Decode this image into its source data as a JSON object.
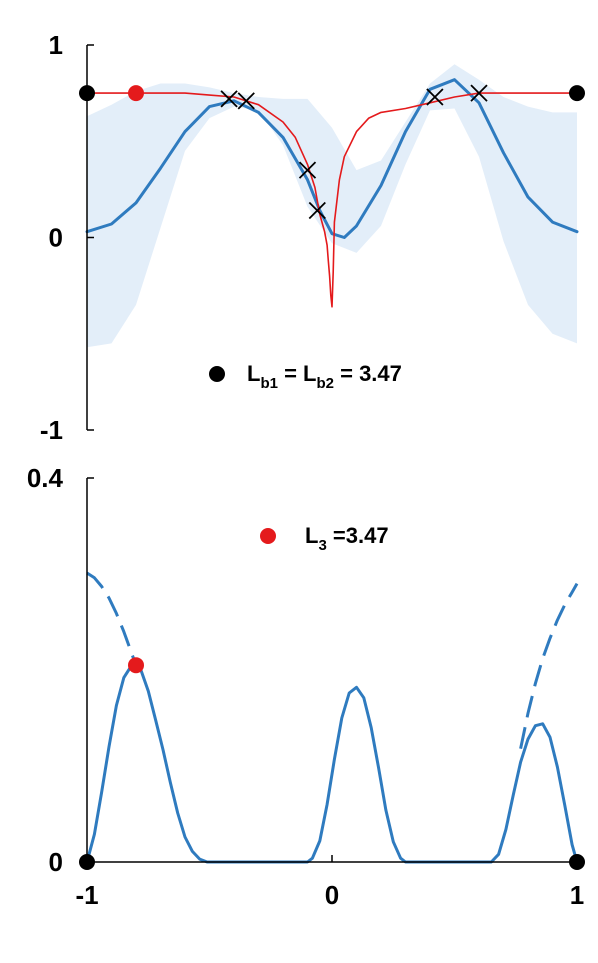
{
  "chart_data": [
    {
      "type": "line",
      "title": "",
      "xlabel": "",
      "ylabel": "",
      "xlim": [
        -1,
        1
      ],
      "ylim": [
        -1,
        1
      ],
      "y_ticks": [
        {
          "value": -1,
          "label": "-1"
        },
        {
          "value": 0,
          "label": "0"
        },
        {
          "value": 1,
          "label": "1"
        }
      ],
      "x_ticks": [],
      "grid": false,
      "colors": {
        "blue": "#2f7bbf",
        "band": "#e3eef9",
        "red": "#e41a1c",
        "black": "#000000"
      },
      "series": [
        {
          "kind": "band",
          "x": [
            -1,
            -0.9,
            -0.8,
            -0.7,
            -0.6,
            -0.5,
            -0.4,
            -0.3,
            -0.2,
            -0.1,
            0,
            0.1,
            0.2,
            0.3,
            0.4,
            0.5,
            0.6,
            0.7,
            0.8,
            0.9,
            1
          ],
          "upper": [
            0.63,
            0.69,
            0.76,
            0.8,
            0.8,
            0.78,
            0.75,
            0.73,
            0.72,
            0.72,
            0.57,
            0.35,
            0.4,
            0.6,
            0.8,
            0.9,
            0.82,
            0.73,
            0.68,
            0.65,
            0.65
          ],
          "lower": [
            -0.57,
            -0.55,
            -0.35,
            0.05,
            0.45,
            0.62,
            0.68,
            0.66,
            0.48,
            0.16,
            -0.03,
            -0.08,
            0.06,
            0.38,
            0.66,
            0.67,
            0.42,
            -0.02,
            -0.35,
            -0.5,
            -0.55
          ]
        },
        {
          "kind": "line",
          "x": [
            -1,
            -0.9,
            -0.8,
            -0.7,
            -0.6,
            -0.5,
            -0.4,
            -0.3,
            -0.2,
            -0.1,
            -0.05,
            0,
            0.05,
            0.1,
            0.2,
            0.3,
            0.4,
            0.5,
            0.6,
            0.7,
            0.8,
            0.9,
            1
          ],
          "y": [
            0.03,
            0.07,
            0.18,
            0.36,
            0.55,
            0.68,
            0.71,
            0.65,
            0.52,
            0.3,
            0.14,
            0.02,
            0.0,
            0.06,
            0.27,
            0.55,
            0.77,
            0.82,
            0.7,
            0.44,
            0.21,
            0.08,
            0.03
          ]
        },
        {
          "kind": "line",
          "x": [
            -1,
            -0.6,
            -0.5,
            -0.4,
            -0.3,
            -0.2,
            -0.15,
            -0.1,
            -0.07,
            -0.05,
            -0.03,
            -0.02,
            -0.015,
            -0.01,
            -0.005,
            0,
            0.005,
            0.01,
            0.03,
            0.05,
            0.1,
            0.15,
            0.2,
            0.3,
            0.4,
            0.5,
            0.6,
            1
          ],
          "y": [
            0.75,
            0.75,
            0.74,
            0.73,
            0.69,
            0.6,
            0.52,
            0.38,
            0.26,
            0.12,
            0.03,
            -0.04,
            -0.12,
            -0.2,
            -0.3,
            -0.36,
            -0.18,
            0.08,
            0.3,
            0.42,
            0.55,
            0.62,
            0.65,
            0.67,
            0.7,
            0.73,
            0.75,
            0.75
          ]
        },
        {
          "kind": "markers",
          "marker": "x",
          "x": [
            -0.42,
            -0.35,
            -0.1,
            -0.06,
            0.42,
            0.6
          ],
          "y": [
            0.72,
            0.71,
            0.35,
            0.14,
            0.73,
            0.75
          ]
        },
        {
          "kind": "markers",
          "marker": "dot-black",
          "x": [
            -1,
            1
          ],
          "y": [
            0.75,
            0.75
          ]
        },
        {
          "kind": "markers",
          "marker": "dot-red",
          "x": [
            -0.8
          ],
          "y": [
            0.75
          ]
        }
      ],
      "legend": {
        "placement": "bottom-center",
        "entries": [
          {
            "marker": "dot-black",
            "parts": [
              {
                "text": "L",
                "sub": false
              },
              {
                "text": "b1",
                "sub": true
              },
              {
                "text": " = L",
                "sub": false
              },
              {
                "text": "b2",
                "sub": true
              },
              {
                "text": " = 3.47",
                "sub": false
              }
            ]
          }
        ]
      }
    },
    {
      "type": "line",
      "title": "",
      "xlabel": "",
      "ylabel": "",
      "xlim": [
        -1,
        1
      ],
      "ylim": [
        0,
        0.4
      ],
      "y_ticks": [
        {
          "value": 0,
          "label": "0"
        },
        {
          "value": 0.4,
          "label": "0.4"
        }
      ],
      "x_ticks": [
        {
          "value": -1,
          "label": "-1"
        },
        {
          "value": 0,
          "label": "0"
        },
        {
          "value": 1,
          "label": "1"
        }
      ],
      "grid": false,
      "series": [
        {
          "kind": "line",
          "x": [
            -1,
            -0.97,
            -0.94,
            -0.91,
            -0.88,
            -0.85,
            -0.82,
            -0.8,
            -0.78,
            -0.75,
            -0.72,
            -0.69,
            -0.66,
            -0.63,
            -0.6,
            -0.57,
            -0.54,
            -0.51,
            -0.5,
            -0.1,
            -0.08,
            -0.05,
            -0.02,
            0.01,
            0.04,
            0.07,
            0.1,
            0.13,
            0.16,
            0.19,
            0.22,
            0.25,
            0.28,
            0.3,
            0.65,
            0.68,
            0.71,
            0.74,
            0.77,
            0.8,
            0.83,
            0.86,
            0.89,
            0.92,
            0.95,
            0.98,
            1
          ],
          "y": [
            0,
            0.029,
            0.073,
            0.12,
            0.163,
            0.192,
            0.204,
            0.205,
            0.2,
            0.178,
            0.148,
            0.117,
            0.083,
            0.051,
            0.026,
            0.011,
            0.003,
            0.0,
            0.0,
            0.0,
            0.004,
            0.022,
            0.06,
            0.107,
            0.15,
            0.176,
            0.182,
            0.171,
            0.14,
            0.098,
            0.054,
            0.021,
            0.004,
            0.0,
            0.0,
            0.008,
            0.034,
            0.07,
            0.104,
            0.128,
            0.142,
            0.144,
            0.13,
            0.099,
            0.059,
            0.018,
            0
          ]
        },
        {
          "kind": "dashed",
          "x": [
            -1,
            -0.97,
            -0.94,
            -0.91,
            -0.88,
            -0.85,
            -0.82,
            -0.8
          ],
          "y": [
            0.301,
            0.296,
            0.287,
            0.275,
            0.259,
            0.24,
            0.219,
            0.205
          ]
        },
        {
          "kind": "dashed",
          "x": [
            0.77,
            0.8,
            0.83,
            0.86,
            0.89,
            0.92,
            0.95,
            0.98,
            1
          ],
          "y": [
            0.118,
            0.155,
            0.186,
            0.212,
            0.233,
            0.252,
            0.268,
            0.281,
            0.29
          ]
        },
        {
          "kind": "markers",
          "marker": "dot-black",
          "x": [
            -1,
            1
          ],
          "y": [
            0,
            0
          ]
        },
        {
          "kind": "markers",
          "marker": "dot-red",
          "x": [
            -0.8
          ],
          "y": [
            0.205
          ]
        }
      ],
      "legend": {
        "placement": "top-center",
        "entries": [
          {
            "marker": "dot-red",
            "parts": [
              {
                "text": "L",
                "sub": false
              },
              {
                "text": "3",
                "sub": true
              },
              {
                "text": " =3.47",
                "sub": false
              }
            ]
          }
        ]
      }
    }
  ]
}
